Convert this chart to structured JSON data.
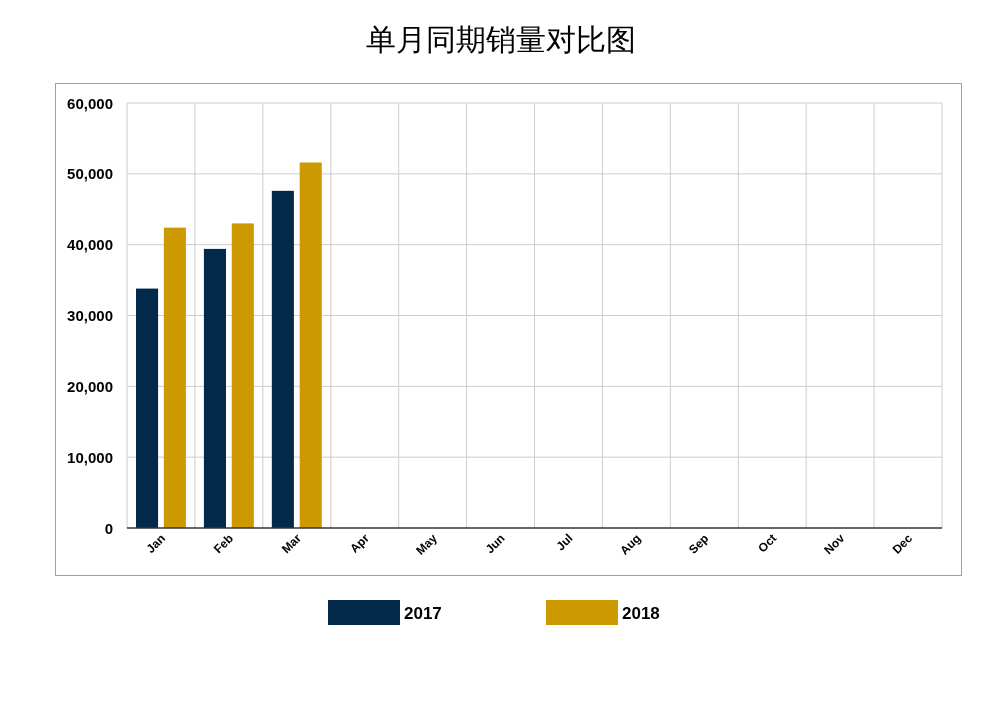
{
  "chart_data": {
    "type": "bar",
    "title": "单月同期销量对比图",
    "categories": [
      "Jan",
      "Feb",
      "Mar",
      "Apr",
      "May",
      "Jun",
      "Jul",
      "Aug",
      "Sep",
      "Oct",
      "Nov",
      "Dec"
    ],
    "series": [
      {
        "name": "2017",
        "color": "#03294a",
        "values": [
          33800,
          39400,
          47600,
          null,
          null,
          null,
          null,
          null,
          null,
          null,
          null,
          null
        ]
      },
      {
        "name": "2018",
        "color": "#cc9900",
        "values": [
          42400,
          43000,
          51600,
          null,
          null,
          null,
          null,
          null,
          null,
          null,
          null,
          null
        ]
      }
    ],
    "ylim": [
      0,
      60000
    ],
    "yticks": [
      0,
      {
        "value": 10000,
        "label": "10,000"
      },
      {
        "value": 20000,
        "label": "20,000"
      },
      {
        "value": 30000,
        "label": "30,000"
      },
      {
        "value": 40000,
        "label": "40,000"
      },
      {
        "value": 50000,
        "label": "50,000"
      },
      {
        "value": 60000,
        "label": "60,000"
      }
    ],
    "grid": true,
    "legend": "bottom"
  }
}
